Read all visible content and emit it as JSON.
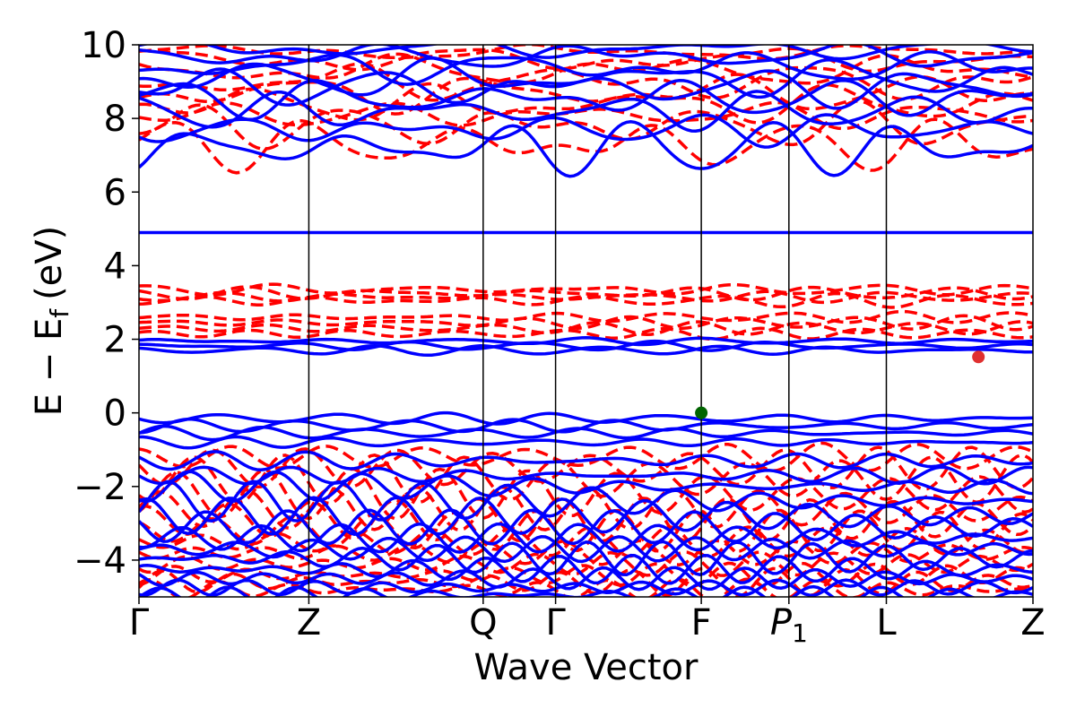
{
  "chart_data": {
    "type": "line",
    "title": "",
    "xlabel": "Wave Vector",
    "ylabel_main": "E − E",
    "ylabel_sub": "f",
    "ylabel_unit": "(eV)",
    "ylim": [
      -5,
      10
    ],
    "xlim": [
      0,
      1
    ],
    "yticks": [
      -4,
      -2,
      0,
      2,
      4,
      6,
      8,
      10
    ],
    "ytick_labels": [
      "−4",
      "−2",
      "0",
      "2",
      "4",
      "6",
      "8",
      "10"
    ],
    "kpoints": [
      {
        "label": "Γ",
        "sub": "",
        "x": 0.0
      },
      {
        "label": "Z",
        "sub": "",
        "x": 0.19
      },
      {
        "label": "Q",
        "sub": "",
        "x": 0.385
      },
      {
        "label": "Γ",
        "sub": "",
        "x": 0.466
      },
      {
        "label": "F",
        "sub": "",
        "x": 0.629
      },
      {
        "label": "P",
        "sub": "1",
        "x": 0.727
      },
      {
        "label": "L",
        "sub": "",
        "x": 0.836
      },
      {
        "label": "Z",
        "sub": "",
        "x": 1.0
      }
    ],
    "series": [
      {
        "style": "solid",
        "color": "#0000ff"
      },
      {
        "style": "dashed",
        "color": "#ff0000"
      }
    ],
    "markers": [
      {
        "x": 0.629,
        "y": 0.0,
        "color": "#006400"
      },
      {
        "x": 0.939,
        "y": 1.52,
        "color": "#e03030"
      }
    ],
    "flat_band": {
      "y": 4.9,
      "color": "#0000ff"
    }
  }
}
